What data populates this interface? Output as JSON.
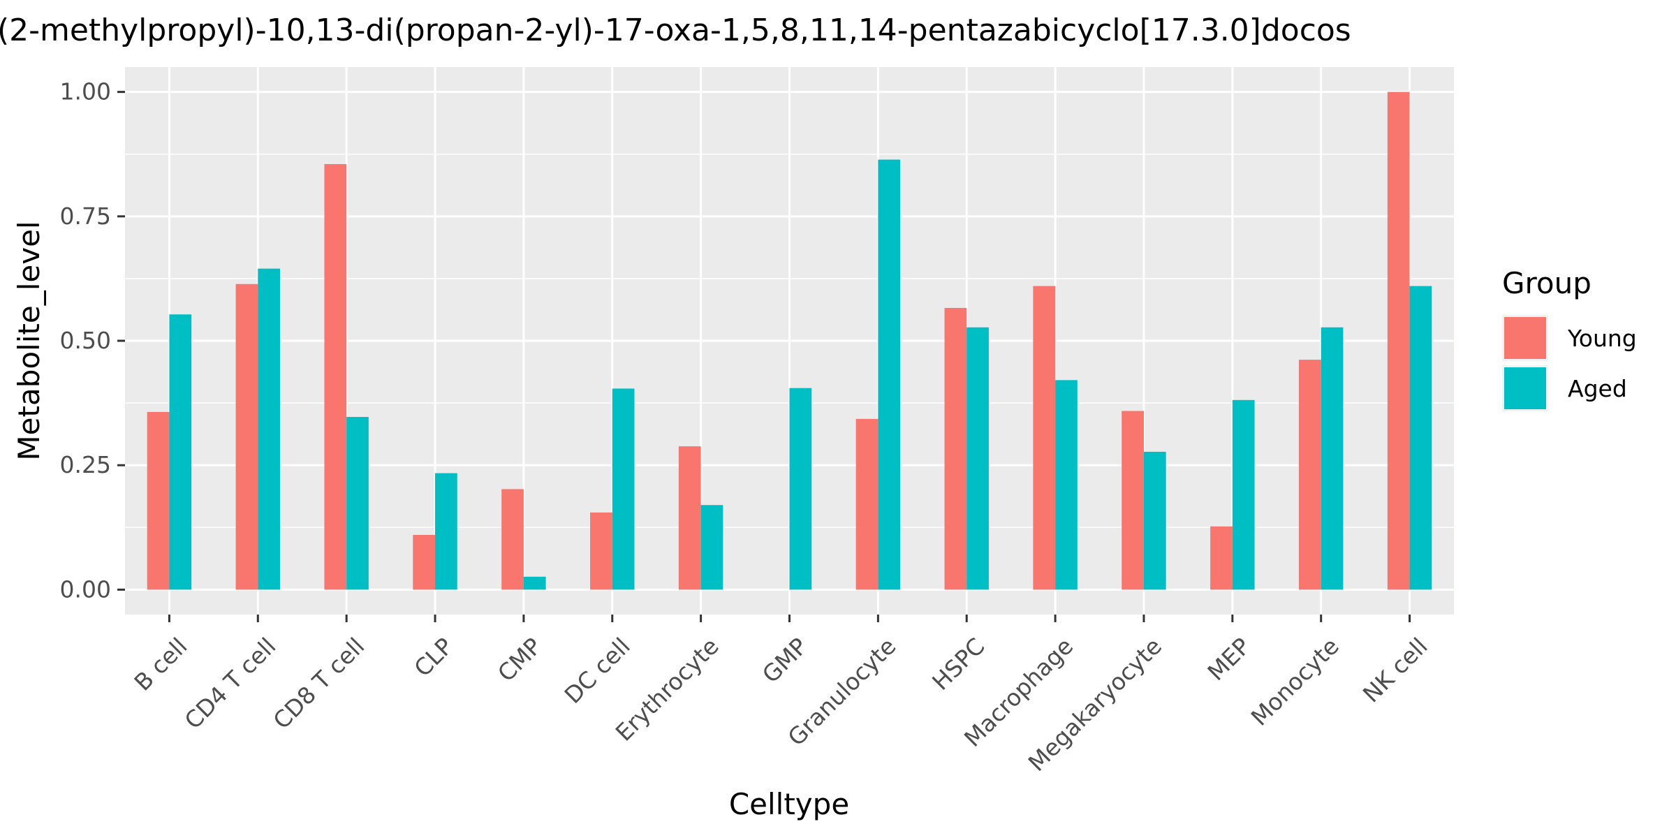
{
  "chart_data": {
    "type": "bar",
    "title": "(2-methylpropyl)-10,13-di(propan-2-yl)-17-oxa-1,5,8,11,14-pentazabicyclo[17.3.0]docos",
    "xlabel": "Celltype",
    "ylabel": "Metabolite_level",
    "ylim": [
      -0.05,
      1.05
    ],
    "yticks": [
      0.0,
      0.25,
      0.5,
      0.75,
      1.0
    ],
    "ytick_labels": [
      "0.00",
      "0.25",
      "0.50",
      "0.75",
      "1.00"
    ],
    "categories": [
      "B cell",
      "CD4 T cell",
      "CD8 T cell",
      "CLP",
      "CMP",
      "DC cell",
      "Erythrocyte",
      "GMP",
      "Granulocyte",
      "HSPC",
      "Macrophage",
      "Megakaryocyte",
      "MEP",
      "Monocyte",
      "NK cell"
    ],
    "series": [
      {
        "name": "Young",
        "color": "#F8766D",
        "values": [
          0.357,
          0.614,
          0.855,
          0.11,
          0.202,
          0.155,
          0.288,
          0.0,
          0.343,
          0.566,
          0.61,
          0.359,
          0.127,
          0.462,
          1.0
        ]
      },
      {
        "name": "Aged",
        "color": "#00BFC4",
        "values": [
          0.553,
          0.645,
          0.347,
          0.234,
          0.026,
          0.404,
          0.17,
          0.405,
          0.864,
          0.527,
          0.421,
          0.277,
          0.381,
          0.527,
          0.61
        ]
      }
    ],
    "legend": {
      "title": "Group",
      "position": "right"
    },
    "grid": true,
    "panel_background": "#EBEBEB",
    "grid_color": "#FFFFFF"
  }
}
